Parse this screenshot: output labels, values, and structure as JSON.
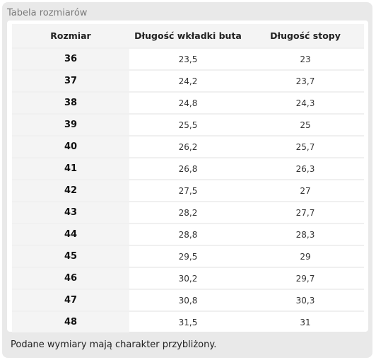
{
  "panel": {
    "title": "Tabela rozmiarów"
  },
  "table": {
    "headers": [
      "Rozmiar",
      "Długość wkładki buta",
      "Długość stopy"
    ],
    "rows": [
      {
        "size": "36",
        "insole": "23,5",
        "foot": "23"
      },
      {
        "size": "37",
        "insole": "24,2",
        "foot": "23,7"
      },
      {
        "size": "38",
        "insole": "24,8",
        "foot": "24,3"
      },
      {
        "size": "39",
        "insole": "25,5",
        "foot": "25"
      },
      {
        "size": "40",
        "insole": "26,2",
        "foot": "25,7"
      },
      {
        "size": "41",
        "insole": "26,8",
        "foot": "26,3"
      },
      {
        "size": "42",
        "insole": "27,5",
        "foot": "27"
      },
      {
        "size": "43",
        "insole": "28,2",
        "foot": "27,7"
      },
      {
        "size": "44",
        "insole": "28,8",
        "foot": "28,3"
      },
      {
        "size": "45",
        "insole": "29,5",
        "foot": "29"
      },
      {
        "size": "46",
        "insole": "30,2",
        "foot": "29,7"
      },
      {
        "size": "47",
        "insole": "30,8",
        "foot": "30,3"
      },
      {
        "size": "48",
        "insole": "31,5",
        "foot": "31"
      }
    ]
  },
  "footnote": "Podane wymiary mają charakter przybliżony."
}
